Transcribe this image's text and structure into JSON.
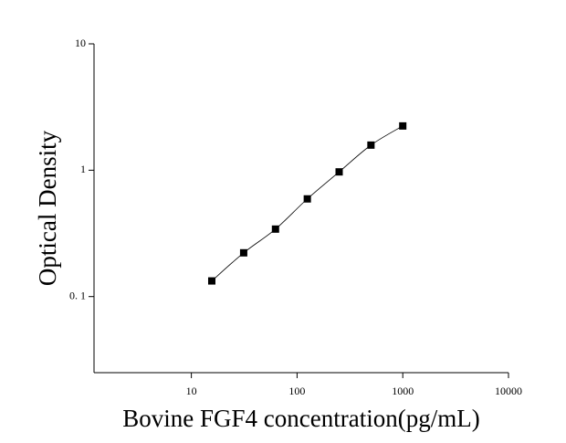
{
  "chart_data": {
    "type": "scatter",
    "x_label": "Bovine FGF4 concentration(pg/mL)",
    "y_label": "Optical Density",
    "x": [
      15.6,
      31.25,
      62.5,
      125,
      250,
      500,
      1000
    ],
    "series": [
      {
        "color": "#000000",
        "values": [
          0.133,
          0.222,
          0.342,
          0.593,
          0.97,
          1.58,
          2.24
        ]
      }
    ],
    "xlim": [
      1.2,
      10000
    ],
    "ylim": [
      0.025,
      10
    ],
    "xticks": [
      10,
      100,
      1000,
      10000
    ],
    "yticks": [
      {
        "value": 0.1,
        "label": "0. 1"
      },
      1,
      10
    ],
    "log_x": true,
    "log_y": true,
    "fit_curve": true
  }
}
